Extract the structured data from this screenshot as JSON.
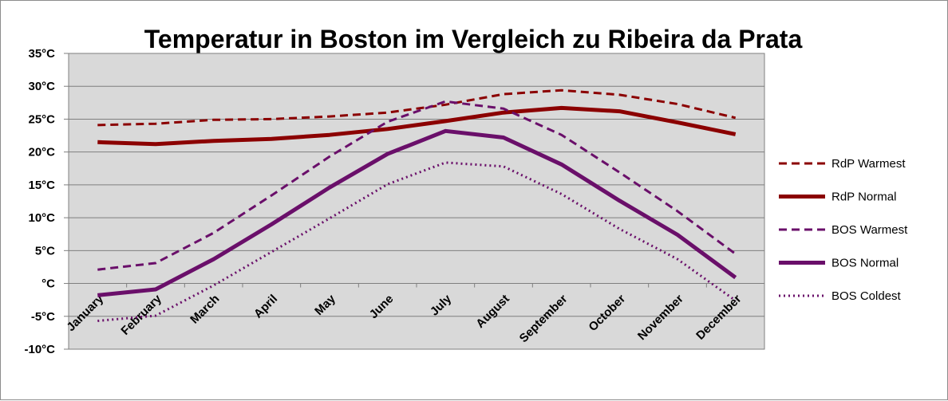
{
  "chart_data": {
    "type": "line",
    "title": "Temperatur in Boston im Vergleich zu Ribeira da Prata",
    "xlabel": "",
    "ylabel": "",
    "ylim": [
      -10,
      35
    ],
    "y_ticks": [
      35,
      30,
      25,
      20,
      15,
      10,
      5,
      0,
      -5,
      -10
    ],
    "y_tick_labels": [
      "35°C",
      "30°C",
      "25°C",
      "20°C",
      "15°C",
      "10°C",
      "5°C",
      "°C",
      "-5°C",
      "-10°C"
    ],
    "grid": true,
    "legend_position": "right",
    "categories": [
      "January",
      "February",
      "March",
      "April",
      "May",
      "June",
      "July",
      "August",
      "September",
      "October",
      "November",
      "December"
    ],
    "series": [
      {
        "name": "RdP Warmest",
        "color": "#8b0000",
        "style": "dashed",
        "values": [
          24.1,
          24.3,
          24.9,
          25.0,
          25.4,
          26.0,
          27.2,
          28.8,
          29.4,
          28.7,
          27.3,
          25.2
        ]
      },
      {
        "name": "RdP Normal",
        "color": "#8b0000",
        "style": "solid",
        "values": [
          21.5,
          21.2,
          21.7,
          22.0,
          22.6,
          23.5,
          24.7,
          26.0,
          26.7,
          26.2,
          24.5,
          22.7
        ]
      },
      {
        "name": "BOS Warmest",
        "color": "#6a0f6a",
        "style": "dashed",
        "values": [
          2.1,
          3.1,
          7.7,
          13.4,
          19.3,
          24.6,
          27.7,
          26.6,
          22.6,
          16.9,
          11.0,
          4.5
        ]
      },
      {
        "name": "BOS Normal",
        "color": "#6a0f6a",
        "style": "solid",
        "values": [
          -1.8,
          -0.9,
          3.7,
          9.0,
          14.6,
          19.7,
          23.2,
          22.2,
          18.1,
          12.6,
          7.4,
          0.9
        ]
      },
      {
        "name": "BOS Coldest",
        "color": "#6a0f6a",
        "style": "dotted",
        "values": [
          -5.7,
          -4.9,
          -0.3,
          4.8,
          9.9,
          15.1,
          18.4,
          17.8,
          13.6,
          8.3,
          3.7,
          -2.6
        ]
      }
    ]
  }
}
